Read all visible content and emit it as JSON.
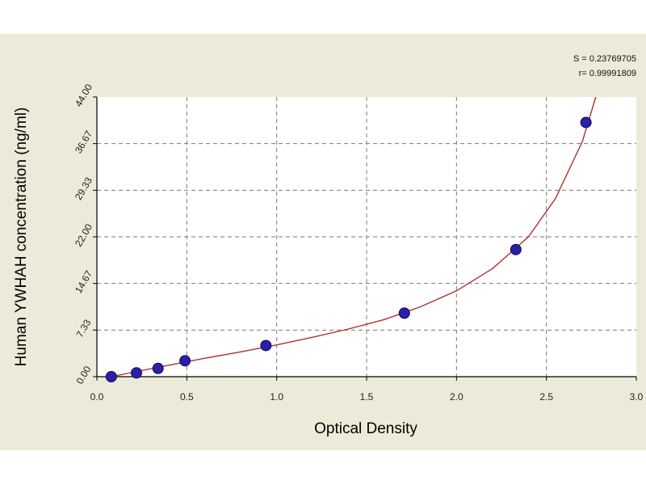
{
  "chart_data": {
    "type": "scatter",
    "title": "",
    "xlabel": "Optical Density",
    "ylabel": "Human  YWHAH concentration (ng/ml)",
    "xlim": [
      0,
      3
    ],
    "ylim": [
      0,
      44
    ],
    "x_ticks": [
      "0.0",
      "0.5",
      "1.0",
      "1.5",
      "2.0",
      "2.5",
      "3.0"
    ],
    "y_ticks": [
      "0.00",
      "7.33",
      "14.67",
      "22.00",
      "29.33",
      "36.67",
      "44.00"
    ],
    "grid": true,
    "stats": {
      "s_line": "S = 0.23769705",
      "r_line": "r= 0.99991809"
    },
    "points_color": "#2b1fa8",
    "curve_color": "#b03030",
    "points": [
      {
        "x": 0.08,
        "y": 0.0
      },
      {
        "x": 0.22,
        "y": 0.6
      },
      {
        "x": 0.34,
        "y": 1.3
      },
      {
        "x": 0.49,
        "y": 2.5
      },
      {
        "x": 0.94,
        "y": 4.9
      },
      {
        "x": 1.71,
        "y": 10.0
      },
      {
        "x": 2.33,
        "y": 20.0
      },
      {
        "x": 2.72,
        "y": 40.0
      }
    ],
    "curve": [
      {
        "x": 0.08,
        "y": 0.0
      },
      {
        "x": 0.2,
        "y": 0.7
      },
      {
        "x": 0.4,
        "y": 1.8
      },
      {
        "x": 0.6,
        "y": 2.9
      },
      {
        "x": 0.8,
        "y": 3.9
      },
      {
        "x": 1.0,
        "y": 5.0
      },
      {
        "x": 1.2,
        "y": 6.2
      },
      {
        "x": 1.4,
        "y": 7.5
      },
      {
        "x": 1.6,
        "y": 9.0
      },
      {
        "x": 1.8,
        "y": 11.0
      },
      {
        "x": 2.0,
        "y": 13.5
      },
      {
        "x": 2.2,
        "y": 17.0
      },
      {
        "x": 2.4,
        "y": 22.0
      },
      {
        "x": 2.55,
        "y": 28.0
      },
      {
        "x": 2.7,
        "y": 37.0
      },
      {
        "x": 2.78,
        "y": 44.5
      }
    ]
  }
}
